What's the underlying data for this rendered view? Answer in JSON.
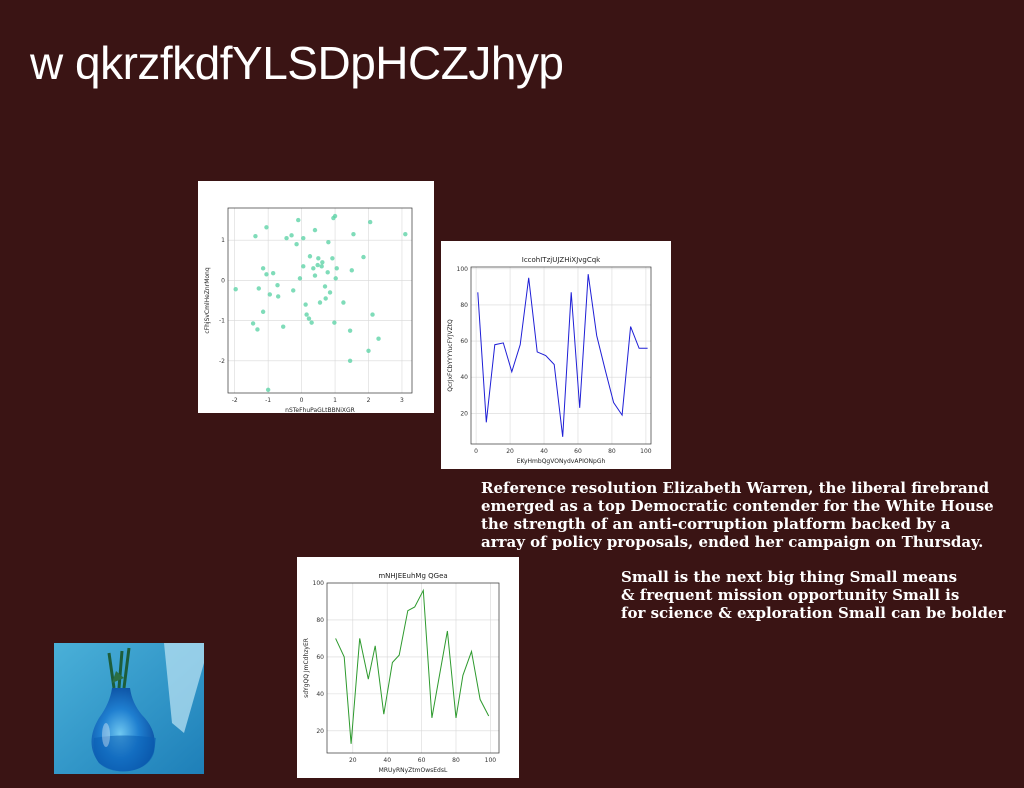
{
  "slide": {
    "title": "w qkrzfkdfYLSDpHCZJhyp",
    "paragraph1": [
      "Reference resolution Elizabeth Warren, the liberal firebrand",
      "emerged as a top Democratic contender for the White House",
      "the strength of an anti-corruption platform backed by a",
      "array of policy proposals, ended her campaign on Thursday."
    ],
    "paragraph2": [
      "Small is the next big thing Small means",
      "& frequent mission opportunity Small is",
      "for science & exploration Small can be bolder"
    ],
    "photo_icon": "blue-glass-vase-icon"
  },
  "chart_data": [
    {
      "type": "scatter",
      "title": "",
      "xlabel": "nSTeFhuPaGLtBBNiXGR",
      "ylabel": "cFhjSvCmlHeZnrMonq",
      "xlim": [
        -2.2,
        3.3
      ],
      "ylim": [
        -2.8,
        1.8
      ],
      "xticks": [
        -2,
        -1,
        0,
        1,
        2,
        3
      ],
      "yticks": [
        -2,
        -1,
        0,
        1
      ],
      "grid": true,
      "color": "#5fd3a8",
      "points": [
        [
          -1.97,
          -0.22
        ],
        [
          -1.45,
          -1.07
        ],
        [
          -1.32,
          -1.22
        ],
        [
          -1.15,
          -0.78
        ],
        [
          -1.28,
          -0.2
        ],
        [
          -1.05,
          0.15
        ],
        [
          -0.85,
          0.18
        ],
        [
          -0.72,
          -0.12
        ],
        [
          -0.95,
          -0.35
        ],
        [
          -1.15,
          0.3
        ],
        [
          -1.38,
          1.1
        ],
        [
          -1.05,
          1.32
        ],
        [
          -0.55,
          -1.15
        ],
        [
          -0.25,
          -0.25
        ],
        [
          -0.05,
          0.05
        ],
        [
          0.05,
          0.35
        ],
        [
          0.12,
          -0.6
        ],
        [
          0.22,
          -0.95
        ],
        [
          0.3,
          -1.05
        ],
        [
          0.4,
          0.12
        ],
        [
          0.48,
          0.38
        ],
        [
          0.55,
          -0.55
        ],
        [
          0.62,
          0.45
        ],
        [
          0.7,
          -0.15
        ],
        [
          0.78,
          0.2
        ],
        [
          0.85,
          -0.3
        ],
        [
          0.92,
          0.55
        ],
        [
          0.98,
          -1.05
        ],
        [
          1.02,
          0.05
        ],
        [
          -0.15,
          0.9
        ],
        [
          0.05,
          1.05
        ],
        [
          -0.3,
          1.12
        ],
        [
          -0.1,
          1.5
        ],
        [
          0.4,
          1.25
        ],
        [
          0.8,
          0.95
        ],
        [
          0.95,
          1.55
        ],
        [
          1.0,
          1.6
        ],
        [
          1.55,
          1.15
        ],
        [
          1.5,
          0.25
        ],
        [
          1.85,
          0.58
        ],
        [
          2.05,
          1.45
        ],
        [
          2.12,
          -0.85
        ],
        [
          2.3,
          -1.45
        ],
        [
          1.45,
          -1.25
        ],
        [
          1.45,
          -2.0
        ],
        [
          2.0,
          -1.75
        ],
        [
          1.25,
          -0.55
        ],
        [
          3.1,
          1.15
        ],
        [
          0.25,
          0.6
        ],
        [
          0.5,
          0.55
        ],
        [
          0.35,
          0.3
        ],
        [
          0.6,
          0.35
        ],
        [
          -0.45,
          1.05
        ],
        [
          0.72,
          -0.45
        ],
        [
          1.05,
          0.3
        ],
        [
          -1.0,
          -2.72
        ],
        [
          -0.7,
          -0.4
        ],
        [
          0.15,
          -0.85
        ]
      ]
    },
    {
      "type": "line",
      "title": "IccohITzjUJZHiXJvgCqk",
      "xlabel": "EKyHmbQgVONydvAPIONpGh",
      "ylabel": "QcrJxFCbYYYYucFYJVZtQ",
      "xlim": [
        -3,
        103
      ],
      "ylim": [
        3,
        101
      ],
      "xticks": [
        0,
        20,
        40,
        60,
        80,
        100
      ],
      "yticks": [
        20,
        40,
        60,
        80,
        100
      ],
      "grid": true,
      "color": "#1f1fd6",
      "x": [
        1,
        6,
        11,
        16,
        21,
        26,
        31,
        36,
        41,
        46,
        51,
        56,
        61,
        66,
        71,
        76,
        81,
        86,
        91,
        96,
        101
      ],
      "y": [
        87,
        15,
        58,
        59,
        43,
        58,
        95,
        54,
        52,
        47,
        7,
        87,
        23,
        97,
        63,
        44,
        26,
        19,
        68,
        56,
        56
      ]
    },
    {
      "type": "line",
      "title": "mNHJEEuhMg QGea",
      "xlabel": "MRUyRNyZtmOwsEdsL",
      "ylabel": "sdYgQQ JmCdhzyER",
      "xlim": [
        5,
        105
      ],
      "ylim": [
        8,
        100
      ],
      "xticks": [
        20,
        40,
        60,
        80,
        100
      ],
      "yticks": [
        20,
        40,
        60,
        80,
        100
      ],
      "grid": true,
      "color": "#2e9a2e",
      "x": [
        10,
        15,
        19,
        24,
        29,
        33,
        38,
        43,
        47,
        52,
        56,
        61,
        66,
        70,
        75,
        80,
        84,
        89,
        94,
        99
      ],
      "y": [
        70,
        60,
        13,
        70,
        48,
        66,
        29,
        57,
        61,
        85,
        87,
        96,
        27,
        48,
        74,
        27,
        50,
        63,
        37,
        28
      ]
    }
  ]
}
